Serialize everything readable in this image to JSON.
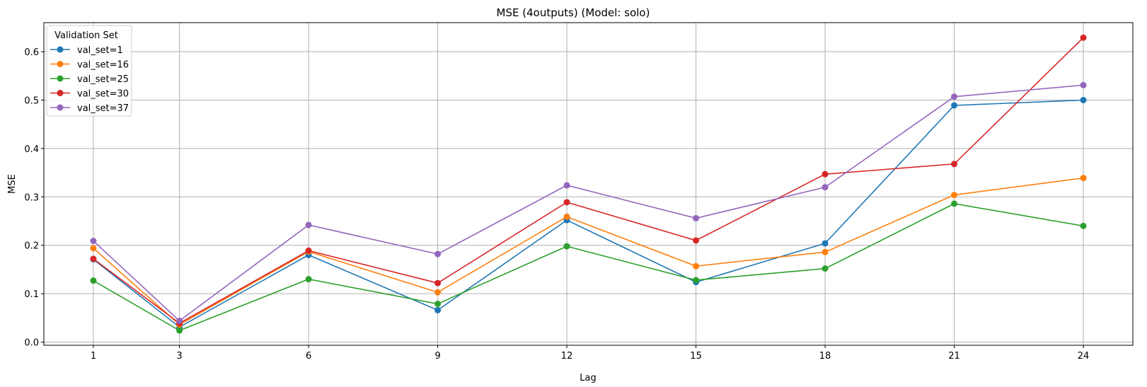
{
  "chart_data": {
    "type": "line",
    "title": "MSE (4outputs) (Model: solo)",
    "xlabel": "Lag",
    "ylabel": "MSE",
    "x": [
      1,
      3,
      6,
      9,
      12,
      15,
      18,
      21,
      24
    ],
    "xlim": [
      -0.15,
      25.15
    ],
    "ylim": [
      -0.0065,
      0.66
    ],
    "yticks": [
      0.0,
      0.1,
      0.2,
      0.3,
      0.4,
      0.5,
      0.6
    ],
    "ytick_labels": [
      "0.0",
      "0.1",
      "0.2",
      "0.3",
      "0.4",
      "0.5",
      "0.6"
    ],
    "xtick_labels": [
      "1",
      "3",
      "6",
      "9",
      "12",
      "15",
      "18",
      "21",
      "24"
    ],
    "grid": true,
    "legend": {
      "title": "Validation Set",
      "position": "top-left"
    },
    "series": [
      {
        "name": "val_set=1",
        "color": "#1f77b4",
        "values": [
          0.171,
          0.031,
          0.18,
          0.066,
          0.252,
          0.124,
          0.204,
          0.489,
          0.5
        ]
      },
      {
        "name": "val_set=16",
        "color": "#ff7f0e",
        "values": [
          0.194,
          0.036,
          0.187,
          0.103,
          0.259,
          0.157,
          0.186,
          0.304,
          0.339
        ]
      },
      {
        "name": "val_set=25",
        "color": "#2ca02c",
        "values": [
          0.127,
          0.024,
          0.13,
          0.079,
          0.198,
          0.128,
          0.152,
          0.286,
          0.24
        ]
      },
      {
        "name": "val_set=30",
        "color": "#d62728",
        "values": [
          0.172,
          0.039,
          0.189,
          0.122,
          0.289,
          0.21,
          0.347,
          0.368,
          0.629
        ]
      },
      {
        "name": "val_set=37",
        "color": "#9467bd",
        "values": [
          0.209,
          0.044,
          0.242,
          0.182,
          0.324,
          0.256,
          0.32,
          0.507,
          0.531
        ]
      }
    ]
  }
}
